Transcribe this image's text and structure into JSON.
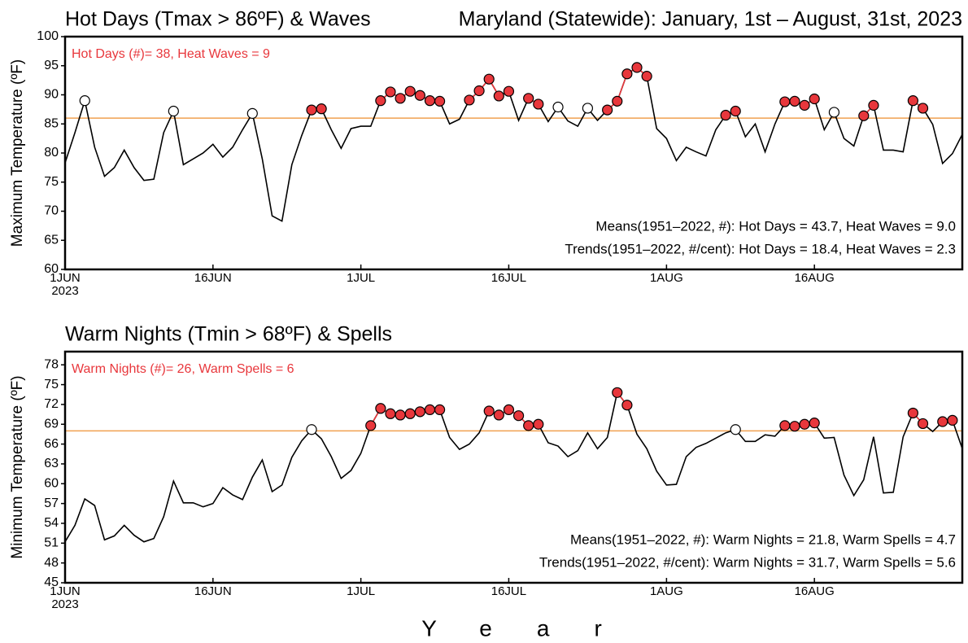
{
  "chart_data": [
    {
      "type": "line",
      "title": "Hot Days (Tmax > 86ºF) & Waves",
      "subtitle": "Maryland (Statewide): January, 1st – August, 31st, 2023",
      "ylabel": "Maximum Temperature (ºF)",
      "annotation": "Hot Days (#)= 38, Heat Waves = 9",
      "notes": [
        "Means(1951–2022, #): Hot Days = 43.7, Heat Waves = 9.0",
        "Trends(1951–2022, #/cent): Hot Days = 18.4, Heat Waves = 2.3"
      ],
      "x": [
        "2023-06-01",
        "2023-06-02",
        "2023-06-03",
        "2023-06-04",
        "2023-06-05",
        "2023-06-06",
        "2023-06-07",
        "2023-06-08",
        "2023-06-09",
        "2023-06-10",
        "2023-06-11",
        "2023-06-12",
        "2023-06-13",
        "2023-06-14",
        "2023-06-15",
        "2023-06-16",
        "2023-06-17",
        "2023-06-18",
        "2023-06-19",
        "2023-06-20",
        "2023-06-21",
        "2023-06-22",
        "2023-06-23",
        "2023-06-24",
        "2023-06-25",
        "2023-06-26",
        "2023-06-27",
        "2023-06-28",
        "2023-06-29",
        "2023-06-30",
        "2023-07-01",
        "2023-07-02",
        "2023-07-03",
        "2023-07-04",
        "2023-07-05",
        "2023-07-06",
        "2023-07-07",
        "2023-07-08",
        "2023-07-09",
        "2023-07-10",
        "2023-07-11",
        "2023-07-12",
        "2023-07-13",
        "2023-07-14",
        "2023-07-15",
        "2023-07-16",
        "2023-07-17",
        "2023-07-18",
        "2023-07-19",
        "2023-07-20",
        "2023-07-21",
        "2023-07-22",
        "2023-07-23",
        "2023-07-24",
        "2023-07-25",
        "2023-07-26",
        "2023-07-27",
        "2023-07-28",
        "2023-07-29",
        "2023-07-30",
        "2023-07-31",
        "2023-08-01",
        "2023-08-02",
        "2023-08-03",
        "2023-08-04",
        "2023-08-05",
        "2023-08-06",
        "2023-08-07",
        "2023-08-08",
        "2023-08-09",
        "2023-08-10",
        "2023-08-11",
        "2023-08-12",
        "2023-08-13",
        "2023-08-14",
        "2023-08-15",
        "2023-08-16",
        "2023-08-17",
        "2023-08-18",
        "2023-08-19",
        "2023-08-20",
        "2023-08-21",
        "2023-08-22",
        "2023-08-23",
        "2023-08-24",
        "2023-08-25",
        "2023-08-26",
        "2023-08-27",
        "2023-08-28",
        "2023-08-29",
        "2023-08-30",
        "2023-08-31"
      ],
      "values": [
        78.3,
        83.5,
        89,
        81,
        76,
        77.5,
        80.5,
        77.5,
        75.3,
        75.5,
        83.5,
        87.2,
        78,
        79,
        80,
        81.5,
        79.3,
        81,
        84,
        86.8,
        79,
        69.2,
        68.3,
        78,
        83,
        87.4,
        87.6,
        84,
        80.8,
        84.2,
        84.6,
        84.6,
        89,
        90.5,
        89.4,
        90.6,
        89.9,
        89,
        88.9,
        85,
        85.8,
        89.1,
        90.7,
        92.7,
        89.8,
        90.6,
        85.6,
        89.4,
        88.4,
        85.4,
        87.9,
        85.5,
        84.6,
        87.7,
        85.6,
        87.4,
        88.9,
        93.6,
        94.7,
        93.2,
        84.2,
        82.5,
        78.7,
        81,
        80.2,
        79.5,
        84,
        86.5,
        87.2,
        82.8,
        85,
        80.2,
        85,
        88.8,
        88.9,
        88.2,
        89.3,
        84,
        87,
        82.5,
        81.2,
        86.4,
        88.2,
        80.5,
        80.5,
        80.2,
        89,
        87.7,
        84.9,
        78.2,
        79.9,
        83.2
      ],
      "color": "#000000",
      "highlight_color": "#e8373c",
      "threshold": 86,
      "threshold_color": "#f0a050",
      "xlim": [
        "2023-06-01",
        "2023-08-31"
      ],
      "xticks": [
        {
          "value": "2023-06-01",
          "label": "1JUN"
        },
        {
          "value": "2023-06-16",
          "label": "16JUN"
        },
        {
          "value": "2023-07-01",
          "label": "1JUL"
        },
        {
          "value": "2023-07-16",
          "label": "16JUL"
        },
        {
          "value": "2023-08-01",
          "label": "1AUG"
        },
        {
          "value": "2023-08-16",
          "label": "16AUG"
        }
      ],
      "x_year": "2023",
      "ylim": [
        60,
        100
      ],
      "yticks": [
        60,
        65,
        70,
        75,
        80,
        85,
        90,
        95,
        100
      ]
    },
    {
      "type": "line",
      "title": "Warm Nights (Tmin > 68ºF) & Spells",
      "ylabel": "Minimum Temperature (ºF)",
      "xlabel": "Year",
      "annotation": "Warm Nights (#)= 26, Warm Spells = 6",
      "notes": [
        "Means(1951–2022, #): Warm Nights = 21.8, Warm Spells = 4.7",
        "Trends(1951–2022, #/cent): Warm Nights = 31.7, Warm Spells = 5.6"
      ],
      "x": [
        "2023-06-01",
        "2023-06-02",
        "2023-06-03",
        "2023-06-04",
        "2023-06-05",
        "2023-06-06",
        "2023-06-07",
        "2023-06-08",
        "2023-06-09",
        "2023-06-10",
        "2023-06-11",
        "2023-06-12",
        "2023-06-13",
        "2023-06-14",
        "2023-06-15",
        "2023-06-16",
        "2023-06-17",
        "2023-06-18",
        "2023-06-19",
        "2023-06-20",
        "2023-06-21",
        "2023-06-22",
        "2023-06-23",
        "2023-06-24",
        "2023-06-25",
        "2023-06-26",
        "2023-06-27",
        "2023-06-28",
        "2023-06-29",
        "2023-06-30",
        "2023-07-01",
        "2023-07-02",
        "2023-07-03",
        "2023-07-04",
        "2023-07-05",
        "2023-07-06",
        "2023-07-07",
        "2023-07-08",
        "2023-07-09",
        "2023-07-10",
        "2023-07-11",
        "2023-07-12",
        "2023-07-13",
        "2023-07-14",
        "2023-07-15",
        "2023-07-16",
        "2023-07-17",
        "2023-07-18",
        "2023-07-19",
        "2023-07-20",
        "2023-07-21",
        "2023-07-22",
        "2023-07-23",
        "2023-07-24",
        "2023-07-25",
        "2023-07-26",
        "2023-07-27",
        "2023-07-28",
        "2023-07-29",
        "2023-07-30",
        "2023-07-31",
        "2023-08-01",
        "2023-08-02",
        "2023-08-03",
        "2023-08-04",
        "2023-08-05",
        "2023-08-06",
        "2023-08-07",
        "2023-08-08",
        "2023-08-09",
        "2023-08-10",
        "2023-08-11",
        "2023-08-12",
        "2023-08-13",
        "2023-08-14",
        "2023-08-15",
        "2023-08-16",
        "2023-08-17",
        "2023-08-18",
        "2023-08-19",
        "2023-08-20",
        "2023-08-21",
        "2023-08-22",
        "2023-08-23",
        "2023-08-24",
        "2023-08-25",
        "2023-08-26",
        "2023-08-27",
        "2023-08-28",
        "2023-08-29",
        "2023-08-30",
        "2023-08-31"
      ],
      "values": [
        51.2,
        53.7,
        57.7,
        56.7,
        51.5,
        52.1,
        53.7,
        52.2,
        51.2,
        51.7,
        55,
        60.4,
        57.1,
        57.1,
        56.5,
        57,
        59.4,
        58.3,
        57.6,
        61,
        63.6,
        58.8,
        59.8,
        64,
        66.5,
        68.2,
        66.8,
        64.1,
        60.8,
        62,
        64.6,
        68.8,
        71.4,
        70.6,
        70.4,
        70.6,
        70.9,
        71.2,
        71.2,
        67,
        65.2,
        66,
        67.7,
        71,
        70.4,
        71.2,
        70.3,
        68.8,
        69,
        66.2,
        65.7,
        64.1,
        65,
        67.7,
        65.3,
        67,
        73.8,
        71.9,
        67.5,
        65.3,
        61.9,
        59.8,
        59.9,
        64.1,
        65.5,
        66.1,
        66.9,
        67.7,
        68.2,
        66.4,
        66.4,
        67.4,
        67.2,
        68.8,
        68.7,
        69,
        69.2,
        66.9,
        67,
        61.3,
        58.2,
        60.6,
        67.1,
        58.6,
        58.7,
        67.1,
        70.7,
        69.1,
        67.9,
        69.4,
        69.6,
        65.3
      ],
      "color": "#000000",
      "highlight_color": "#e8373c",
      "threshold": 68,
      "threshold_color": "#f0a050",
      "xlim": [
        "2023-06-01",
        "2023-08-31"
      ],
      "xticks": [
        {
          "value": "2023-06-01",
          "label": "1JUN"
        },
        {
          "value": "2023-06-16",
          "label": "16JUN"
        },
        {
          "value": "2023-07-01",
          "label": "1JUL"
        },
        {
          "value": "2023-07-16",
          "label": "16JUL"
        },
        {
          "value": "2023-08-01",
          "label": "1AUG"
        },
        {
          "value": "2023-08-16",
          "label": "16AUG"
        }
      ],
      "x_year": "2023",
      "ylim": [
        45,
        80
      ],
      "yticks": [
        45,
        48,
        51,
        54,
        57,
        60,
        63,
        66,
        69,
        72,
        75,
        78
      ]
    }
  ]
}
